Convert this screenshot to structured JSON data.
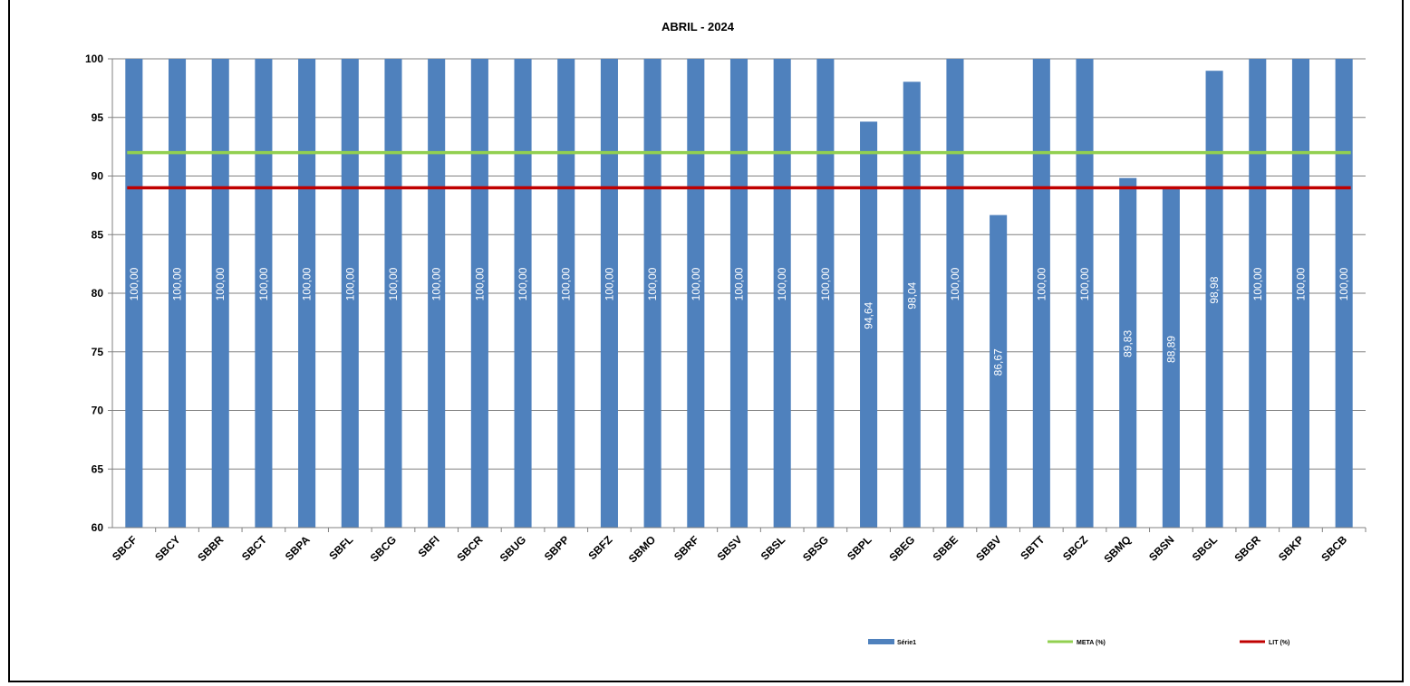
{
  "chart_data": {
    "type": "bar",
    "title": "ABRIL - 2024",
    "categories": [
      "SBCF",
      "SBCY",
      "SBBR",
      "SBCT",
      "SBPA",
      "SBFL",
      "SBCG",
      "SBFI",
      "SBCR",
      "SBUG",
      "SBPP",
      "SBFZ",
      "SBMO",
      "SBRF",
      "SBSV",
      "SBSL",
      "SBSG",
      "SBPL",
      "SBEG",
      "SBBE",
      "SBBV",
      "SBTT",
      "SBCZ",
      "SBMQ",
      "SBSN",
      "SBGL",
      "SBGR",
      "SBKP",
      "SBCB"
    ],
    "series": [
      {
        "name": "Série1",
        "color": "#4f81bd",
        "values": [
          100,
          100,
          100,
          100,
          100,
          100,
          100,
          100,
          100,
          100,
          100,
          100,
          100,
          100,
          100,
          100,
          100,
          94.64,
          98.04,
          100,
          86.67,
          100,
          100,
          89.83,
          88.89,
          98.98,
          100,
          100,
          100
        ],
        "labels": [
          "100,00",
          "100,00",
          "100,00",
          "100,00",
          "100,00",
          "100,00",
          "100,00",
          "100,00",
          "100,00",
          "100,00",
          "100,00",
          "100,00",
          "100,00",
          "100,00",
          "100,00",
          "100,00",
          "100,00",
          "94,64",
          "98,04",
          "100,00",
          "86,67",
          "100,00",
          "100,00",
          "89,83",
          "88,89",
          "98,98",
          "100,00",
          "100,00",
          "100,00"
        ]
      }
    ],
    "lines": [
      {
        "name": "META (%)",
        "value": 92,
        "color": "#92d050"
      },
      {
        "name": "LIT (%)",
        "value": 89,
        "color": "#c00000"
      }
    ],
    "ylim": [
      60,
      100
    ],
    "yticks": [
      60,
      65,
      70,
      75,
      80,
      85,
      90,
      95,
      100
    ],
    "grid": true,
    "legend": "bottom",
    "plot_background": "#ffffff",
    "grid_color": "#808080"
  }
}
